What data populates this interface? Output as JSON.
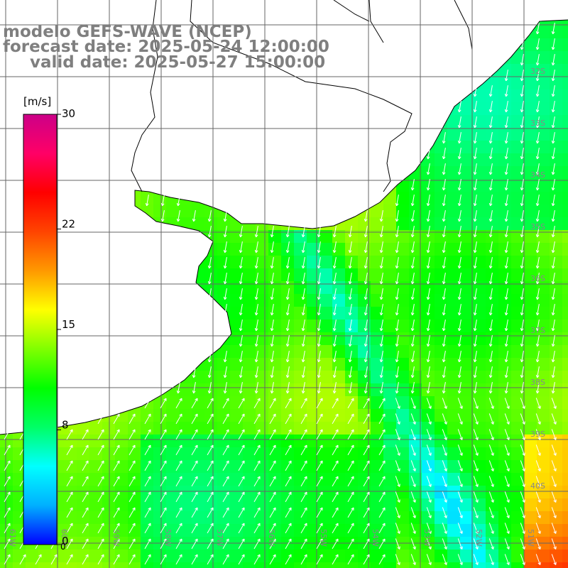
{
  "header": {
    "line1": "modelo GEFS-WAVE (NCEP)",
    "line2": "forecast date: 2025-05-24 12:00:00",
    "line3": "valid date: 2025-05-27 15:00:00"
  },
  "colorbar": {
    "unit": "[m/s]",
    "ticks": [
      "30",
      "22",
      "15",
      "8",
      "0"
    ],
    "tick_values": [
      30,
      22,
      15,
      8,
      0
    ],
    "stops": [
      "#0000ff",
      "#00b0ff",
      "#00ffff",
      "#00ff66",
      "#00ff00",
      "#80ff00",
      "#ffff00",
      "#ff9900",
      "#ff4400",
      "#ff0000",
      "#ff0066",
      "#cc0088"
    ]
  },
  "map": {
    "variable": "wind speed and direction",
    "land_color": "#ffffff",
    "lat_labels": [
      "32S",
      "33S",
      "34S",
      "35S",
      "36S",
      "37S",
      "38S",
      "39S",
      "40S"
    ],
    "lon_labels": [
      "61W",
      "60W",
      "59W",
      "58W",
      "57W",
      "56W",
      "55W",
      "54W",
      "53W",
      "52W",
      "51W"
    ],
    "bottom_row_label": "0"
  }
}
